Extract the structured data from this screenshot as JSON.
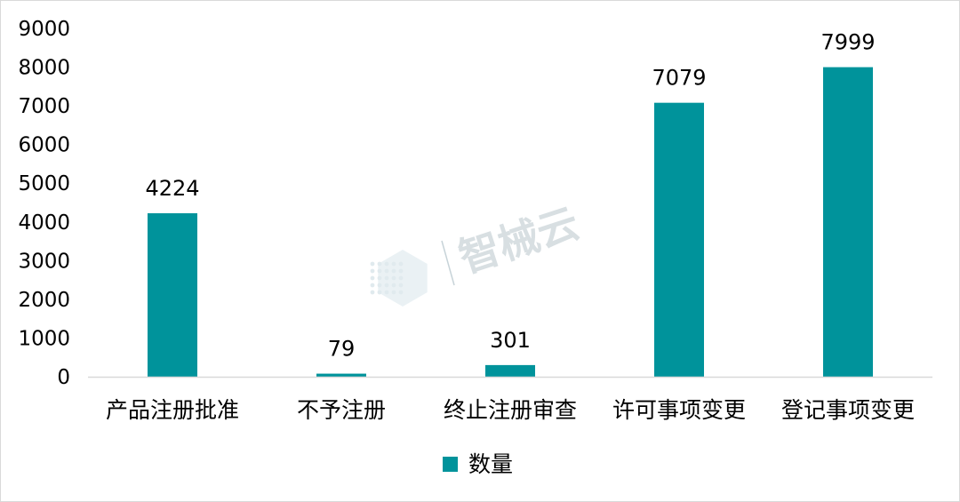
{
  "chart_data": {
    "type": "bar",
    "categories": [
      "产品注册批准",
      "不予注册",
      "终止注册审查",
      "许可事项变更",
      "登记事项变更"
    ],
    "series": [
      {
        "name": "数量",
        "values": [
          4224,
          79,
          301,
          7079,
          7999
        ],
        "color": "#00939B"
      }
    ],
    "ylim": [
      0,
      9000
    ],
    "yticks": [
      0,
      1000,
      2000,
      3000,
      4000,
      5000,
      6000,
      7000,
      8000,
      9000
    ],
    "grid": false,
    "legend": "bottom",
    "data_labels": true
  },
  "watermark": {
    "text": "智械云",
    "logo": "hexagon-dots-icon"
  }
}
